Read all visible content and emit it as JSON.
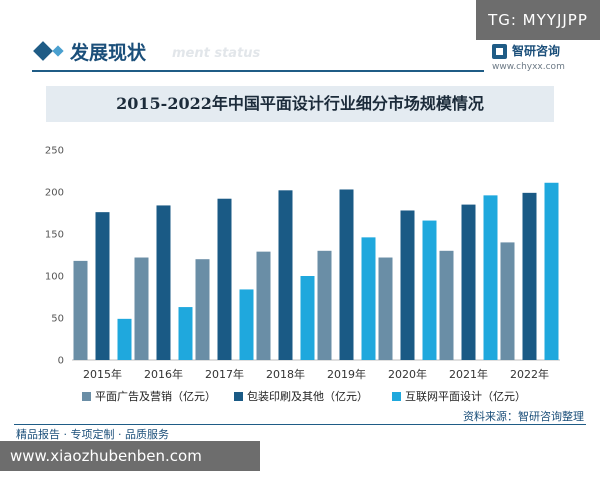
{
  "overlay": {
    "tg_label": "TG: MYYJJPP",
    "site_url": "www.xiaozhubenben.com"
  },
  "header": {
    "section_title": "发展现状",
    "section_subtitle": "ment status",
    "brand_name": "智研咨询",
    "brand_url": "www.chyxx.com"
  },
  "footer": {
    "tagline": "精品报告 · 专项定制 · 品质服务",
    "source": "资料来源：智研咨询整理"
  },
  "colors": {
    "primary": "#1f5c86",
    "series_1": "#6a8ea6",
    "series_2": "#1a5a85",
    "series_3": "#1fa8dd"
  },
  "chart_data": {
    "type": "bar",
    "title": "2015-2022年中国平面设计行业细分市场规模情况",
    "xlabel": "",
    "ylabel": "",
    "ylim": [
      0,
      250
    ],
    "yticks": [
      0,
      50,
      100,
      150,
      200,
      250
    ],
    "categories": [
      "2015年",
      "2016年",
      "2017年",
      "2018年",
      "2019年",
      "2020年",
      "2021年",
      "2022年"
    ],
    "series": [
      {
        "name": "平面广告及营销（亿元）",
        "values": [
          118,
          122,
          120,
          129,
          130,
          122,
          130,
          140
        ]
      },
      {
        "name": "包装印刷及其他（亿元）",
        "values": [
          176,
          184,
          192,
          202,
          203,
          178,
          185,
          199
        ]
      },
      {
        "name": "互联网平面设计（亿元）",
        "values": [
          49,
          63,
          84,
          100,
          146,
          166,
          196,
          211
        ]
      }
    ],
    "legend_position": "bottom"
  }
}
